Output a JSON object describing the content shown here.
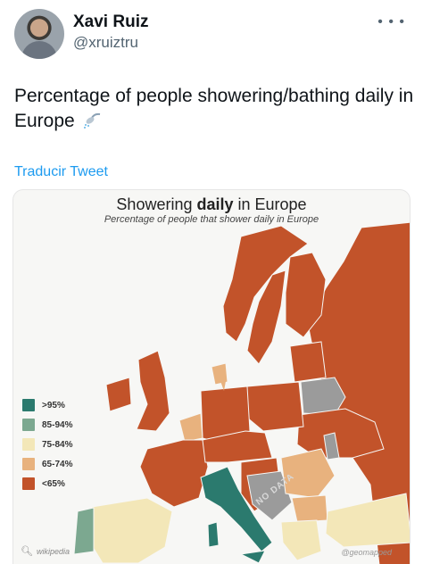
{
  "author": {
    "name": "Xavi Ruiz",
    "handle": "@xruiztru",
    "more_icon": "more-icon"
  },
  "tweet": {
    "text": "Percentage of people showering/bathing daily in Europe",
    "emoji_icon": "shower-icon",
    "translate_label": "Traducir Tweet"
  },
  "map": {
    "title_prefix": "Showering ",
    "title_bold": "daily",
    "title_suffix": " in Europe",
    "subtitle": "Percentage of people that shower daily in Europe",
    "no_data_label": "NO DATA",
    "source": "wikipedia",
    "credit": "@geomapped",
    "legend": [
      {
        "label": ">95%",
        "color": "#2b7a6e"
      },
      {
        "label": "85-94%",
        "color": "#7ca890"
      },
      {
        "label": "75-84%",
        "color": "#f3e7b8"
      },
      {
        "label": "65-74%",
        "color": "#e8b27e"
      },
      {
        "label": "<65%",
        "color": "#c2532a"
      }
    ],
    "colors": {
      "under65": "#c2532a",
      "r65_74": "#e8b27e",
      "r75_84": "#f3e7b8",
      "r85_94": "#7ca890",
      "over95": "#2b7a6e",
      "nodata": "#9b9b9b",
      "sea": "#f7f7f5"
    }
  }
}
